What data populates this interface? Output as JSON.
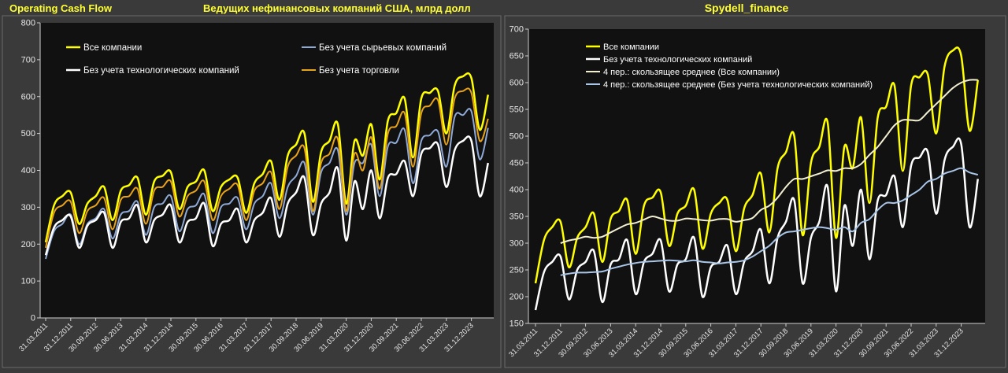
{
  "header": {
    "left_title": "Operating Cash Flow",
    "center_title": "Ведущих нефинансовых компаний США, млрд долл",
    "right_title": "Spydell_finance"
  },
  "colors": {
    "background": "#3a3a3a",
    "plot_bg": "#111111",
    "title": "#ffff33",
    "all_companies": "#ffff00",
    "ex_raw": "#8fa9d6",
    "ex_tech": "#ffffff",
    "ex_trade": "#e8a317",
    "ma_all": "#f3efd0",
    "ma_ex_tech": "#a9c6e8"
  },
  "chart_data": [
    {
      "type": "line",
      "title": "",
      "xlabel": "",
      "ylabel": "",
      "ylim": [
        0,
        800
      ],
      "yticks": [
        0,
        100,
        200,
        300,
        400,
        500,
        600,
        700,
        800
      ],
      "grid": false,
      "legend": "top",
      "x_start": "31.03.2011",
      "xtick_labels": [
        "31.03.2011",
        "31.12.2011",
        "30.09.2012",
        "30.06.2013",
        "31.03.2014",
        "31.12.2014",
        "30.09.2015",
        "30.06.2016",
        "31.03.2017",
        "31.12.2017",
        "30.09.2018",
        "30.06.2019",
        "31.03.2020",
        "31.12.2020",
        "30.09.2021",
        "30.06.2022",
        "31.03.2023",
        "31.12.2023"
      ],
      "series": [
        {
          "name": "Все компании",
          "color": "#ffff00",
          "values": [
            205,
            305,
            330,
            340,
            255,
            310,
            330,
            355,
            265,
            345,
            360,
            380,
            280,
            370,
            385,
            395,
            295,
            355,
            370,
            400,
            290,
            355,
            375,
            380,
            285,
            365,
            390,
            425,
            320,
            440,
            470,
            500,
            315,
            450,
            480,
            525,
            310,
            480,
            440,
            525,
            375,
            535,
            555,
            595,
            435,
            595,
            610,
            615,
            500,
            630,
            655,
            650,
            510,
            605
          ]
        },
        {
          "name": "Без учета сырьевых компаний",
          "color": "#8fa9d6",
          "values": [
            160,
            235,
            255,
            280,
            200,
            255,
            270,
            295,
            215,
            280,
            290,
            315,
            225,
            300,
            310,
            330,
            235,
            295,
            305,
            335,
            230,
            300,
            310,
            325,
            240,
            310,
            330,
            365,
            270,
            355,
            385,
            420,
            280,
            395,
            420,
            455,
            280,
            420,
            420,
            470,
            330,
            465,
            475,
            510,
            365,
            480,
            495,
            505,
            410,
            545,
            550,
            560,
            430,
            515
          ]
        },
        {
          "name": "Без учета технологических компаний",
          "color": "#ffffff",
          "values": [
            170,
            245,
            265,
            275,
            190,
            250,
            265,
            285,
            190,
            260,
            270,
            305,
            205,
            265,
            280,
            305,
            205,
            260,
            270,
            310,
            195,
            255,
            265,
            295,
            205,
            265,
            285,
            325,
            220,
            310,
            340,
            380,
            225,
            310,
            340,
            405,
            210,
            370,
            295,
            400,
            270,
            380,
            390,
            425,
            330,
            445,
            460,
            470,
            355,
            455,
            480,
            480,
            330,
            420
          ]
        },
        {
          "name": "Без учета торговли",
          "color": "#e8a317",
          "values": [
            190,
            285,
            305,
            315,
            230,
            290,
            305,
            325,
            240,
            320,
            330,
            350,
            255,
            345,
            355,
            370,
            275,
            330,
            345,
            370,
            265,
            330,
            350,
            360,
            265,
            345,
            365,
            395,
            295,
            410,
            440,
            460,
            290,
            420,
            445,
            485,
            290,
            445,
            400,
            490,
            350,
            500,
            520,
            555,
            410,
            555,
            575,
            590,
            470,
            595,
            615,
            610,
            480,
            540
          ]
        }
      ]
    },
    {
      "type": "line",
      "title": "",
      "xlabel": "",
      "ylabel": "",
      "ylim": [
        150,
        700
      ],
      "yticks": [
        150,
        200,
        250,
        300,
        350,
        400,
        450,
        500,
        550,
        600,
        650,
        700
      ],
      "grid": false,
      "legend": "top",
      "x_start": "31.03.2011",
      "xtick_labels": [
        "31.03.2011",
        "31.12.2011",
        "30.09.2012",
        "30.06.2013",
        "31.03.2014",
        "31.12.2014",
        "30.09.2015",
        "30.06.2016",
        "31.03.2017",
        "31.12.2017",
        "30.09.2018",
        "30.06.2019",
        "31.03.2020",
        "31.12.2020",
        "30.09.2021",
        "30.06.2022",
        "31.03.2023",
        "31.12.2023"
      ],
      "series": [
        {
          "name": "Все компании",
          "color": "#ffff00",
          "values": [
            225,
            305,
            330,
            340,
            255,
            310,
            330,
            355,
            265,
            345,
            360,
            380,
            280,
            370,
            385,
            395,
            295,
            355,
            370,
            400,
            290,
            355,
            375,
            380,
            285,
            365,
            390,
            430,
            320,
            440,
            470,
            500,
            315,
            450,
            480,
            525,
            310,
            480,
            440,
            535,
            375,
            535,
            555,
            595,
            435,
            595,
            610,
            615,
            505,
            630,
            660,
            650,
            510,
            605
          ]
        },
        {
          "name": "Без учета технологических компаний",
          "color": "#ffffff",
          "values": [
            175,
            245,
            265,
            275,
            195,
            250,
            265,
            285,
            190,
            260,
            270,
            305,
            205,
            265,
            280,
            305,
            210,
            260,
            270,
            310,
            200,
            255,
            265,
            295,
            205,
            265,
            285,
            325,
            225,
            310,
            340,
            380,
            225,
            310,
            340,
            405,
            210,
            370,
            295,
            400,
            270,
            380,
            390,
            425,
            330,
            445,
            460,
            470,
            355,
            455,
            480,
            485,
            330,
            420
          ]
        },
        {
          "name": "4 пер.: скользящее среднее (Все компании)",
          "color": "#f3efd0",
          "values": [
            null,
            null,
            null,
            300,
            305,
            308,
            312,
            310,
            312,
            320,
            328,
            335,
            338,
            344,
            350,
            346,
            342,
            342,
            346,
            345,
            343,
            342,
            345,
            345,
            340,
            343,
            347,
            362,
            370,
            385,
            405,
            420,
            420,
            425,
            430,
            436,
            435,
            440,
            440,
            448,
            465,
            480,
            500,
            520,
            530,
            530,
            530,
            545,
            560,
            575,
            590,
            600,
            605,
            605
          ]
        },
        {
          "name": "4 пер.: скользящее среднее (Без учета технологических компаний)",
          "color": "#a9c6e8",
          "values": [
            null,
            null,
            null,
            240,
            243,
            245,
            245,
            246,
            247,
            252,
            256,
            260,
            263,
            265,
            266,
            267,
            268,
            267,
            266,
            268,
            265,
            264,
            262,
            264,
            265,
            268,
            275,
            285,
            295,
            310,
            320,
            322,
            325,
            328,
            330,
            328,
            325,
            330,
            322,
            338,
            345,
            362,
            375,
            375,
            380,
            390,
            400,
            415,
            420,
            430,
            435,
            440,
            432,
            428
          ]
        }
      ]
    }
  ]
}
